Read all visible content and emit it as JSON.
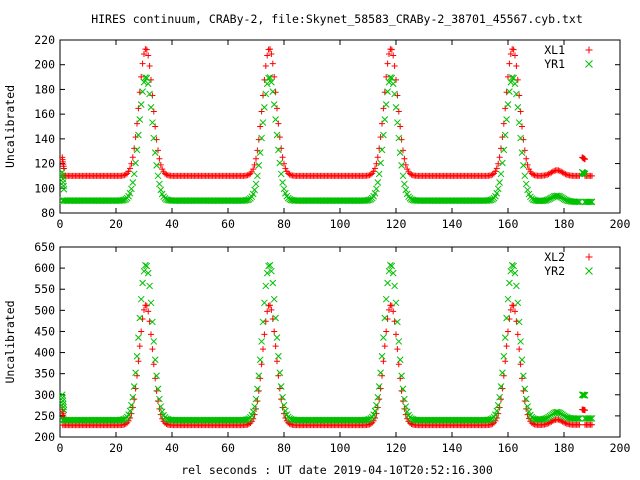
{
  "title": "HIRES continuum, CRABy-2, file:Skynet_58583_CRABy-2_38701_45567.cyb.txt",
  "xlabel": "rel seconds : UT date 2019-04-10T20:52:16.300",
  "colors": {
    "series1": "#ff0000",
    "series2": "#00c000"
  },
  "chart_data": [
    {
      "type": "scatter",
      "ylabel": "Uncalibrated",
      "xlim": [
        0,
        200
      ],
      "ylim": [
        80,
        220
      ],
      "xticks": [
        0,
        20,
        40,
        60,
        80,
        100,
        120,
        140,
        160,
        180,
        200
      ],
      "yticks": [
        80,
        100,
        120,
        140,
        160,
        180,
        200,
        220
      ],
      "legend_position": "top-right",
      "pulse_centers": [
        30.7,
        74.8,
        118.2,
        161.7
      ],
      "series": [
        {
          "name": "XL1",
          "marker": "+",
          "baseline": 110,
          "peak": 213,
          "glitch_x": [
            0.8,
            186.5
          ],
          "glitch_y": 125,
          "tail_end": 110
        },
        {
          "name": "YR1",
          "marker": "x",
          "baseline": 90,
          "peak": 190,
          "glitch_x": [
            0.8,
            186.5
          ],
          "glitch_y": 113,
          "tail_end": 89
        }
      ]
    },
    {
      "type": "scatter",
      "ylabel": "Uncalibrated",
      "xlim": [
        0,
        200
      ],
      "ylim": [
        200,
        650
      ],
      "xticks": [
        0,
        20,
        40,
        60,
        80,
        100,
        120,
        140,
        160,
        180,
        200
      ],
      "yticks": [
        200,
        250,
        300,
        350,
        400,
        450,
        500,
        550,
        600,
        650
      ],
      "legend_position": "top-right",
      "pulse_centers": [
        30.7,
        74.8,
        118.2,
        161.7
      ],
      "series": [
        {
          "name": "XL2",
          "marker": "+",
          "baseline": 228,
          "peak": 513,
          "glitch_x": [
            0.8,
            186.5
          ],
          "glitch_y": 265,
          "tail_end": 229
        },
        {
          "name": "YR2",
          "marker": "x",
          "baseline": 240,
          "peak": 608,
          "glitch_x": [
            0.8,
            186.5
          ],
          "glitch_y": 300,
          "tail_end": 244
        }
      ]
    }
  ]
}
